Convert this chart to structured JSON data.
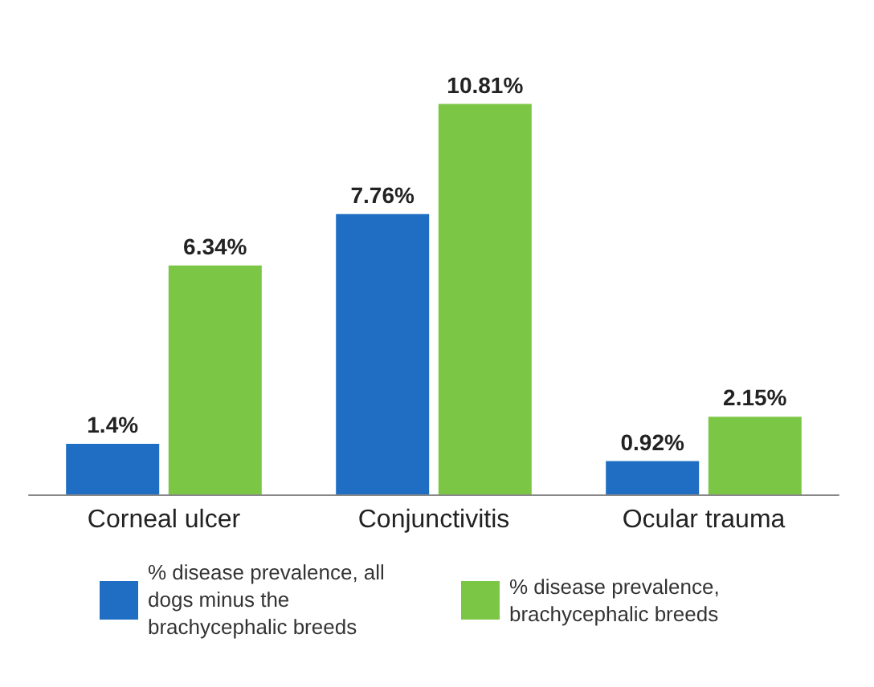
{
  "chart_data": {
    "type": "bar",
    "categories": [
      "Corneal ulcer",
      "Conjunctivitis",
      "Ocular trauma"
    ],
    "series": [
      {
        "name": "% disease prevalence, all dogs minus the brachycephalic breeds",
        "color": "#1f6ec4",
        "values": [
          1.4,
          7.76,
          0.92
        ],
        "value_labels": [
          "1.4%",
          "7.76%",
          "0.92%"
        ]
      },
      {
        "name": "% disease prevalence, brachycephalic breeds",
        "color": "#7cc646",
        "values": [
          6.34,
          10.81,
          2.15
        ],
        "value_labels": [
          "6.34%",
          "10.81%",
          "2.15%"
        ]
      }
    ],
    "legend": "bottom",
    "tick_labels": "x"
  }
}
